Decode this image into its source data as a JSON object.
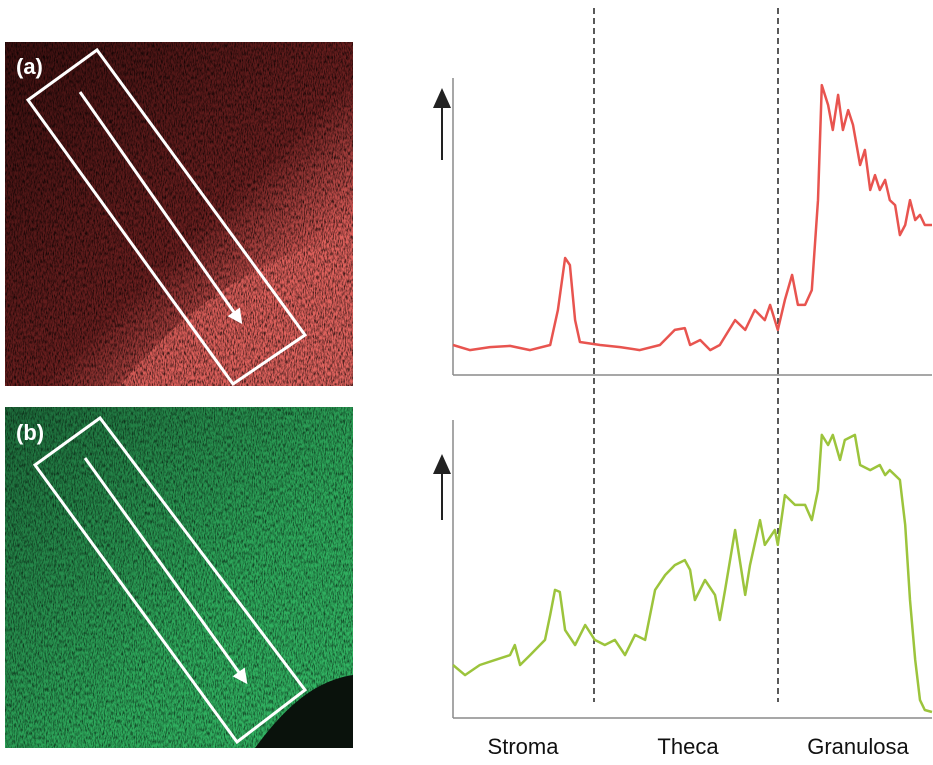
{
  "panels": [
    {
      "label": "(a)"
    },
    {
      "label": "(b)"
    }
  ],
  "regions": [
    "Stroma",
    "Theca",
    "Granulosa"
  ],
  "chart_data": [
    {
      "type": "line",
      "color": "#e8544f",
      "xlim": [
        0,
        100
      ],
      "ylim": [
        0,
        100
      ],
      "x": [
        0,
        3.5,
        7.7,
        11.9,
        16.1,
        20.3,
        21.9,
        23.4,
        24.4,
        25.5,
        26.5,
        30.7,
        34.9,
        39,
        43.2,
        46.3,
        48.4,
        49.5,
        51.6,
        53.7,
        55.7,
        58.9,
        61,
        63,
        65.1,
        66.2,
        67.8,
        69.3,
        70.8,
        72,
        73.5,
        74.9,
        76.2,
        77,
        78.3,
        79.3,
        80.4,
        81.4,
        82.5,
        83.5,
        85,
        86,
        87.1,
        88.1,
        89.1,
        90.2,
        91.2,
        92.3,
        93.3,
        94.4,
        95.4,
        96.5,
        97.5,
        98.5,
        100
      ],
      "values": [
        10.1,
        8.4,
        9.4,
        9.8,
        8.4,
        10.1,
        21.9,
        39.4,
        37,
        18.5,
        11.1,
        10.1,
        9.4,
        8.4,
        10.1,
        15.2,
        15.8,
        10.1,
        11.8,
        8.4,
        10.1,
        18.5,
        15.2,
        21.9,
        18.5,
        23.6,
        15.2,
        25.3,
        33.7,
        23.6,
        23.6,
        28.6,
        58.9,
        97.6,
        90.9,
        82.5,
        94.3,
        82.5,
        89.2,
        84.2,
        70.7,
        75.8,
        62.3,
        67.3,
        62.3,
        65.7,
        58.9,
        57.2,
        47.1,
        50.5,
        58.9,
        52.2,
        53.9,
        50.5,
        50.5
      ]
    },
    {
      "type": "line",
      "color": "#9cc43c",
      "xlim": [
        0,
        100
      ],
      "ylim": [
        0,
        100
      ],
      "x": [
        0,
        2.5,
        5.6,
        8.8,
        11.9,
        12.9,
        14,
        16.1,
        19.2,
        20.3,
        21.3,
        22.3,
        23.4,
        25.5,
        27.6,
        29.6,
        31.7,
        33.8,
        35.9,
        38,
        40.1,
        42.2,
        44.3,
        46.3,
        48.4,
        49.5,
        50.5,
        52.6,
        54.7,
        55.7,
        56.8,
        58.9,
        61,
        62,
        64.1,
        65.1,
        67.2,
        67.8,
        69.3,
        71.4,
        73.5,
        74.9,
        76.2,
        77,
        78.3,
        79.3,
        80.8,
        81.8,
        83.9,
        85,
        87.1,
        89.1,
        90.2,
        91.2,
        93.3,
        94.4,
        95.4,
        96.5,
        97.5,
        98.5,
        100
      ],
      "values": [
        17.8,
        14.4,
        17.8,
        19.5,
        21.1,
        24.5,
        17.8,
        21.1,
        26.2,
        34.6,
        43,
        42.3,
        29.5,
        24.5,
        31.2,
        26.2,
        24.5,
        26.2,
        21.1,
        27.9,
        26.2,
        43,
        48,
        51.3,
        53,
        49.7,
        39.6,
        46.3,
        41.3,
        32.9,
        43,
        63.1,
        41.3,
        51.3,
        66.4,
        58.1,
        63.1,
        58.1,
        74.8,
        71.5,
        71.5,
        66.4,
        76.5,
        95,
        91.6,
        95,
        86.6,
        93.3,
        95,
        84.9,
        83.2,
        84.9,
        81.5,
        83.2,
        79.9,
        64.8,
        39.6,
        19.5,
        6,
        2.7,
        2
      ]
    }
  ]
}
